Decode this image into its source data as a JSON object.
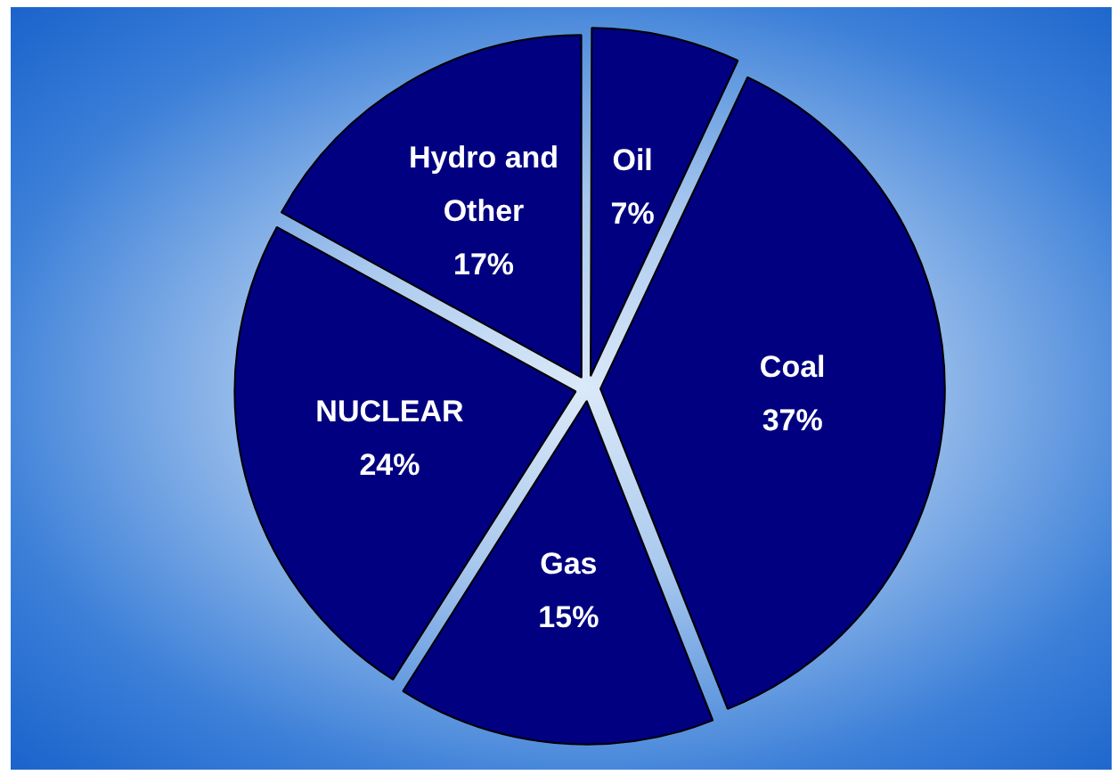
{
  "chart_data": {
    "type": "pie",
    "categories": [
      "Oil",
      "Coal",
      "Gas",
      "NUCLEAR",
      "Hydro and Other"
    ],
    "values": [
      7,
      37,
      15,
      24,
      17
    ],
    "colors": [
      "#000080",
      "#000080",
      "#000080",
      "#000080",
      "#000080"
    ],
    "value_labels": [
      "7%",
      "37%",
      "15%",
      "24%",
      "17%"
    ],
    "legend": false
  }
}
